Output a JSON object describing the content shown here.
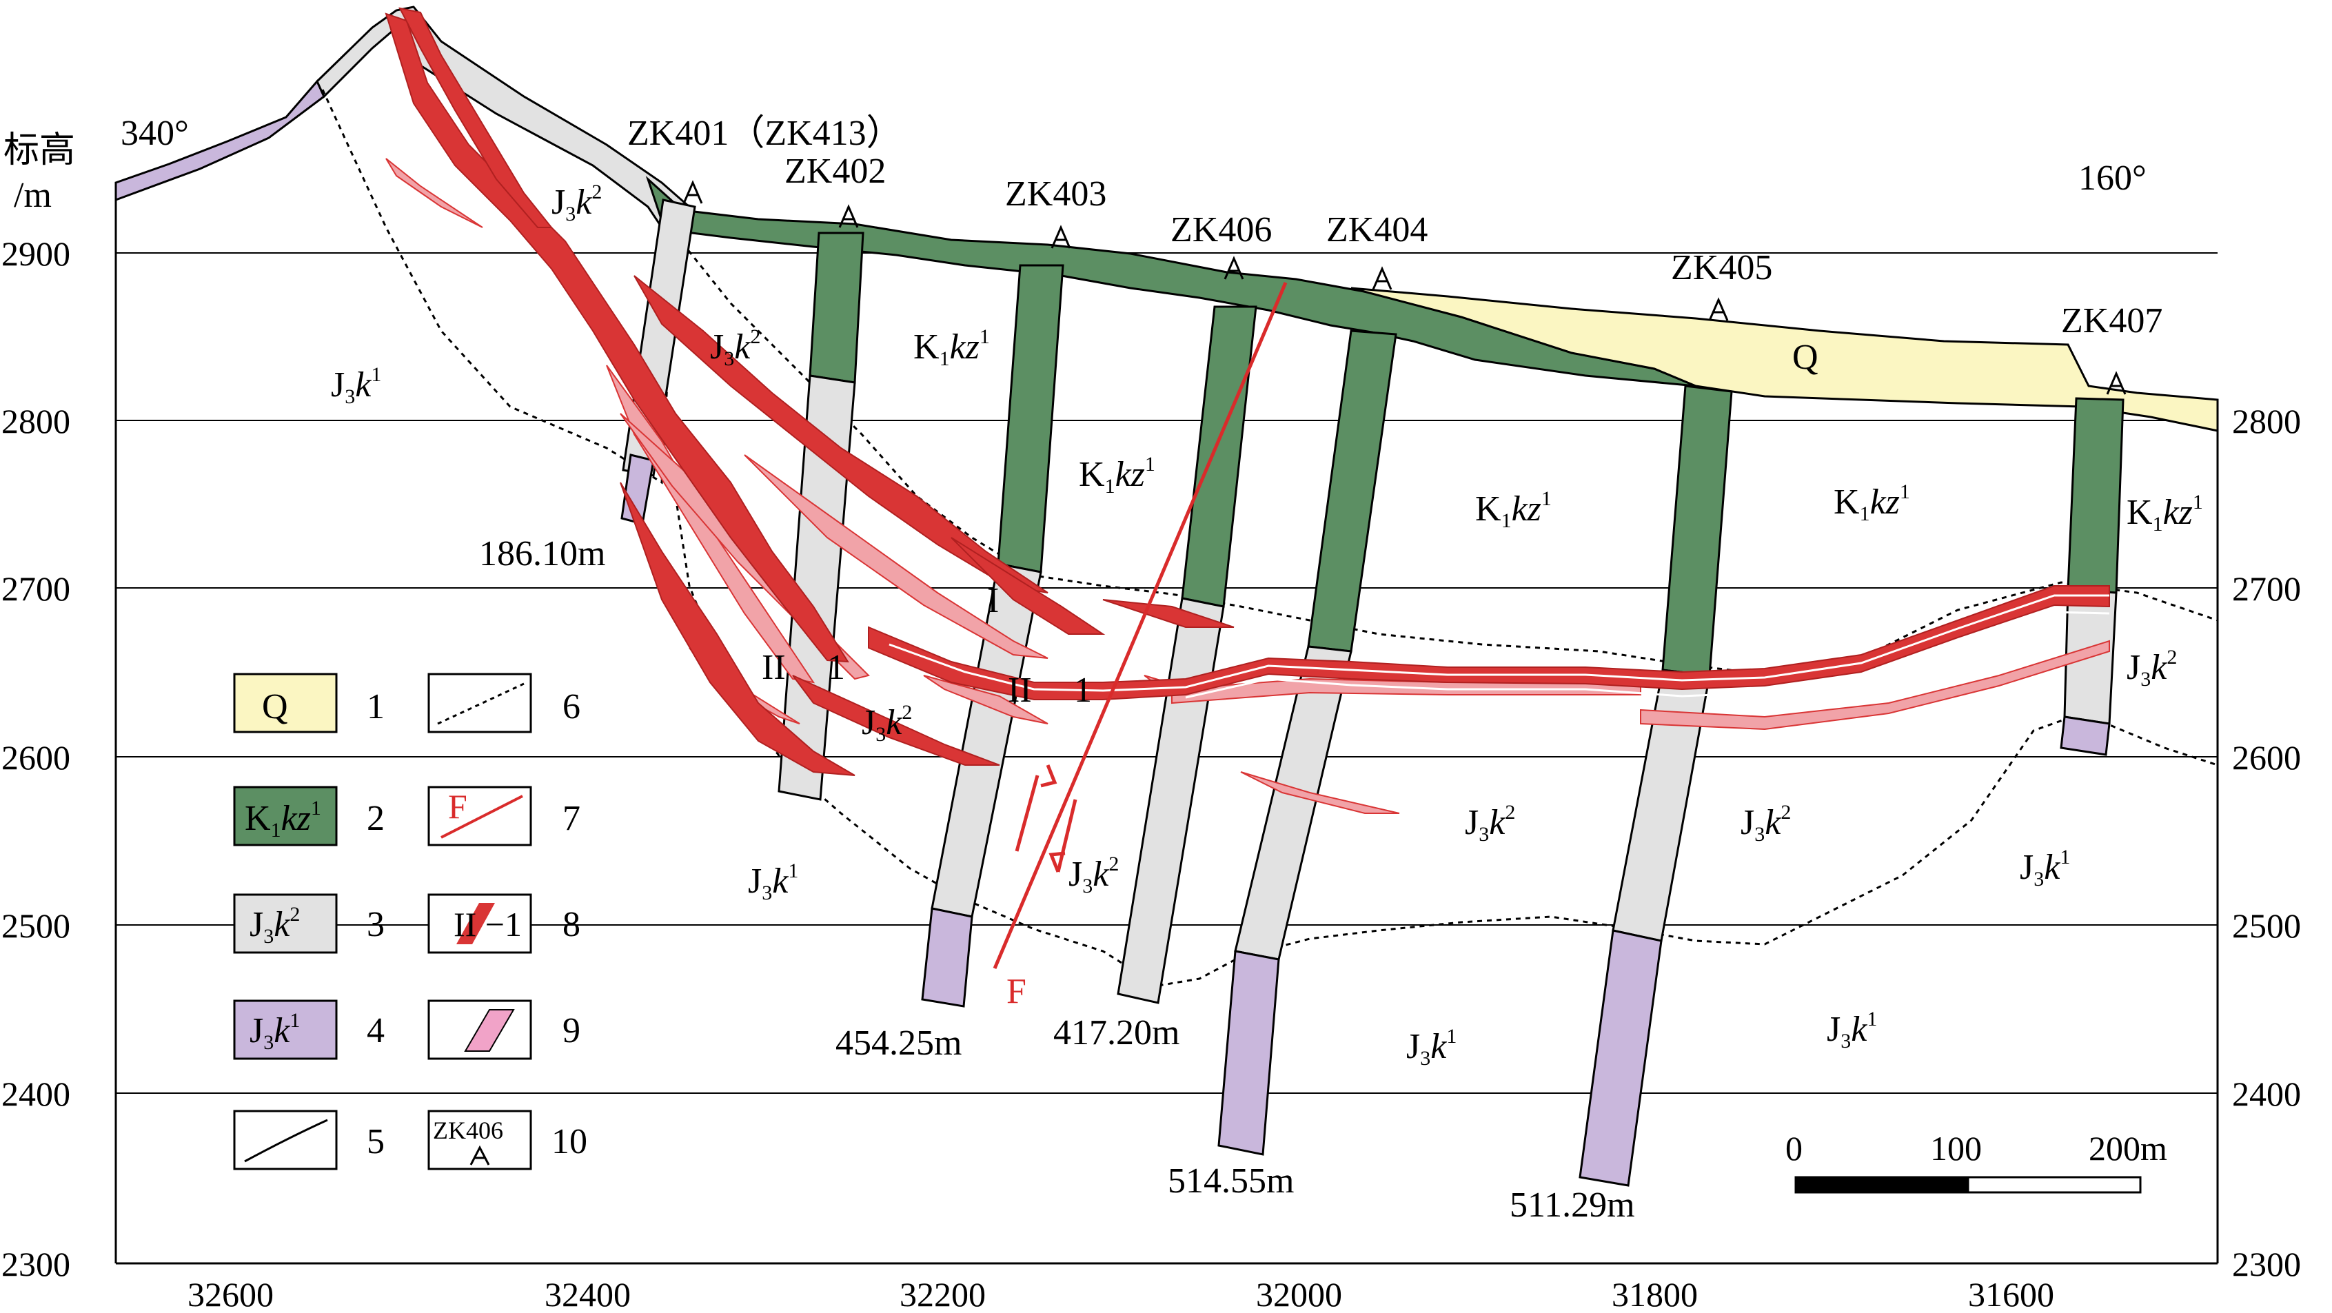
{
  "axes": {
    "y_title": "标高",
    "y_unit": "/m",
    "y_ticks": [
      "2300",
      "2400",
      "2500",
      "2600",
      "2700",
      "2800",
      "2900"
    ],
    "y_right_ticks": [
      "2300",
      "2400",
      "2500",
      "2600",
      "2700",
      "2800"
    ],
    "x_ticks": [
      "32600",
      "32400",
      "32200",
      "32000",
      "31800",
      "31600"
    ]
  },
  "orientation": {
    "left": "340°",
    "right": "160°"
  },
  "boreholes": {
    "zk401": "ZK401（ZK413）",
    "zk402": "ZK402",
    "zk403": "ZK403",
    "zk406": "ZK406",
    "zk404": "ZK404",
    "zk405": "ZK405",
    "zk407": "ZK407"
  },
  "depths": {
    "d1": "186.10m",
    "d2": "454.25m",
    "d3": "417.20m",
    "d4": "514.55m",
    "d5": "511.29m"
  },
  "units": {
    "q": "Q",
    "j3k1": "J3k1",
    "j3k2": "J3k2",
    "k1kz1": "K1kz1"
  },
  "orebodies": {
    "o1": "I",
    "o2": "II",
    "o2_1": "1",
    "o3": "II",
    "o3_1": "1"
  },
  "fault": "F",
  "legend": {
    "items": [
      {
        "num": "1",
        "label": "Q",
        "color": "#fbf6c2"
      },
      {
        "num": "2",
        "label": "K1kz1",
        "color": "#5c8f63"
      },
      {
        "num": "3",
        "label": "J3k2",
        "color": "#e2e2e2"
      },
      {
        "num": "4",
        "label": "J3k1",
        "color": "#c9b7dc"
      },
      {
        "num": "5",
        "label": ""
      },
      {
        "num": "6",
        "label": ""
      },
      {
        "num": "7",
        "label": "F"
      },
      {
        "num": "8",
        "label": "II −1"
      },
      {
        "num": "9",
        "label": ""
      },
      {
        "num": "10",
        "label": "ZK406"
      }
    ]
  },
  "scale": {
    "t0": "0",
    "t1": "100",
    "t2": "200m"
  },
  "colors": {
    "quaternary": "#fbf6c2",
    "k1kz1": "#5c8f63",
    "j3k2": "#e2e2e2",
    "j3k1": "#c9b7dc",
    "ore": "#d93535",
    "ore_low": "#f1a3a8",
    "fault": "#d92b2b"
  }
}
